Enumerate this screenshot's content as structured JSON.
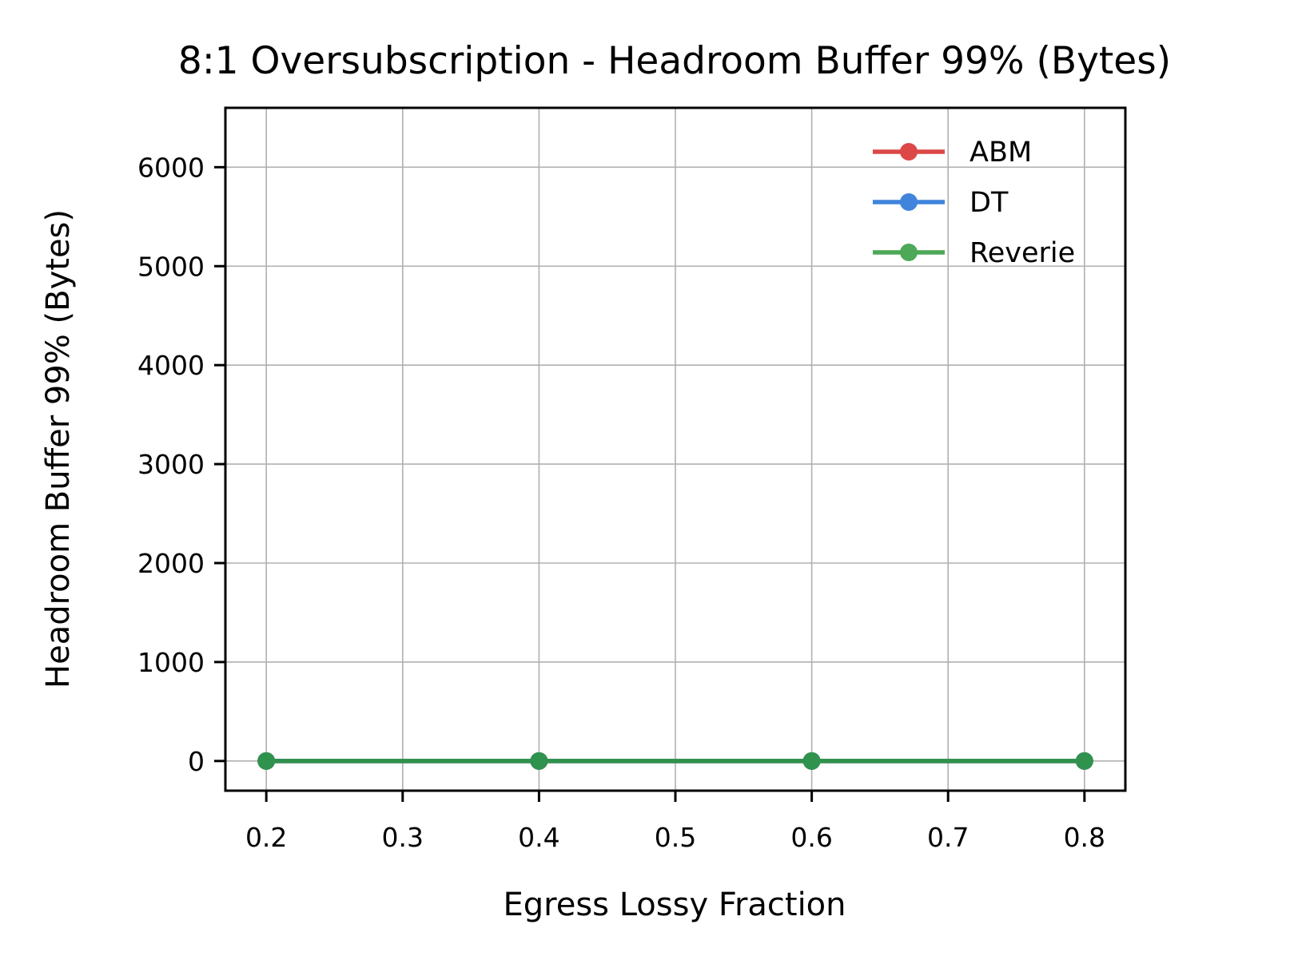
{
  "chart_data": {
    "type": "line",
    "title": "8:1 Oversubscription - Headroom Buffer 99% (Bytes)",
    "xlabel": "Egress Lossy Fraction",
    "ylabel": "Headroom Buffer 99% (Bytes)",
    "x": [
      0.2,
      0.4,
      0.6,
      0.8
    ],
    "xlim": [
      0.17,
      0.83
    ],
    "ylim": [
      -300,
      6600
    ],
    "xticks": [
      "0.2",
      "0.3",
      "0.4",
      "0.5",
      "0.6",
      "0.7",
      "0.8"
    ],
    "yticks": [
      "0",
      "1000",
      "2000",
      "3000",
      "4000",
      "5000",
      "6000"
    ],
    "grid": true,
    "legend_position": "top-right",
    "series": [
      {
        "name": "ABM",
        "color": "#d62728",
        "values": [
          0,
          0,
          0,
          0
        ]
      },
      {
        "name": "DT",
        "color": "#1f6fd6",
        "values": [
          0,
          0,
          0,
          0
        ]
      },
      {
        "name": "Reverie",
        "color": "#2e9a3a",
        "values": [
          0,
          0,
          0,
          0
        ]
      }
    ]
  }
}
